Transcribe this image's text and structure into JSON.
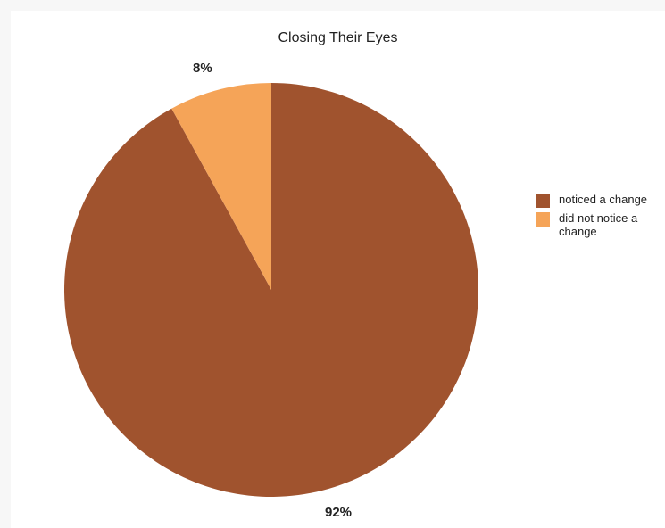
{
  "chart_data": {
    "type": "pie",
    "title": "Closing Their Eyes",
    "categories": [
      "noticed a change",
      "did not notice a change"
    ],
    "values": [
      92,
      8
    ],
    "data_labels": [
      "92%",
      "8%"
    ],
    "colors": [
      "#A0532E",
      "#F5A458"
    ],
    "legend_position": "right"
  }
}
